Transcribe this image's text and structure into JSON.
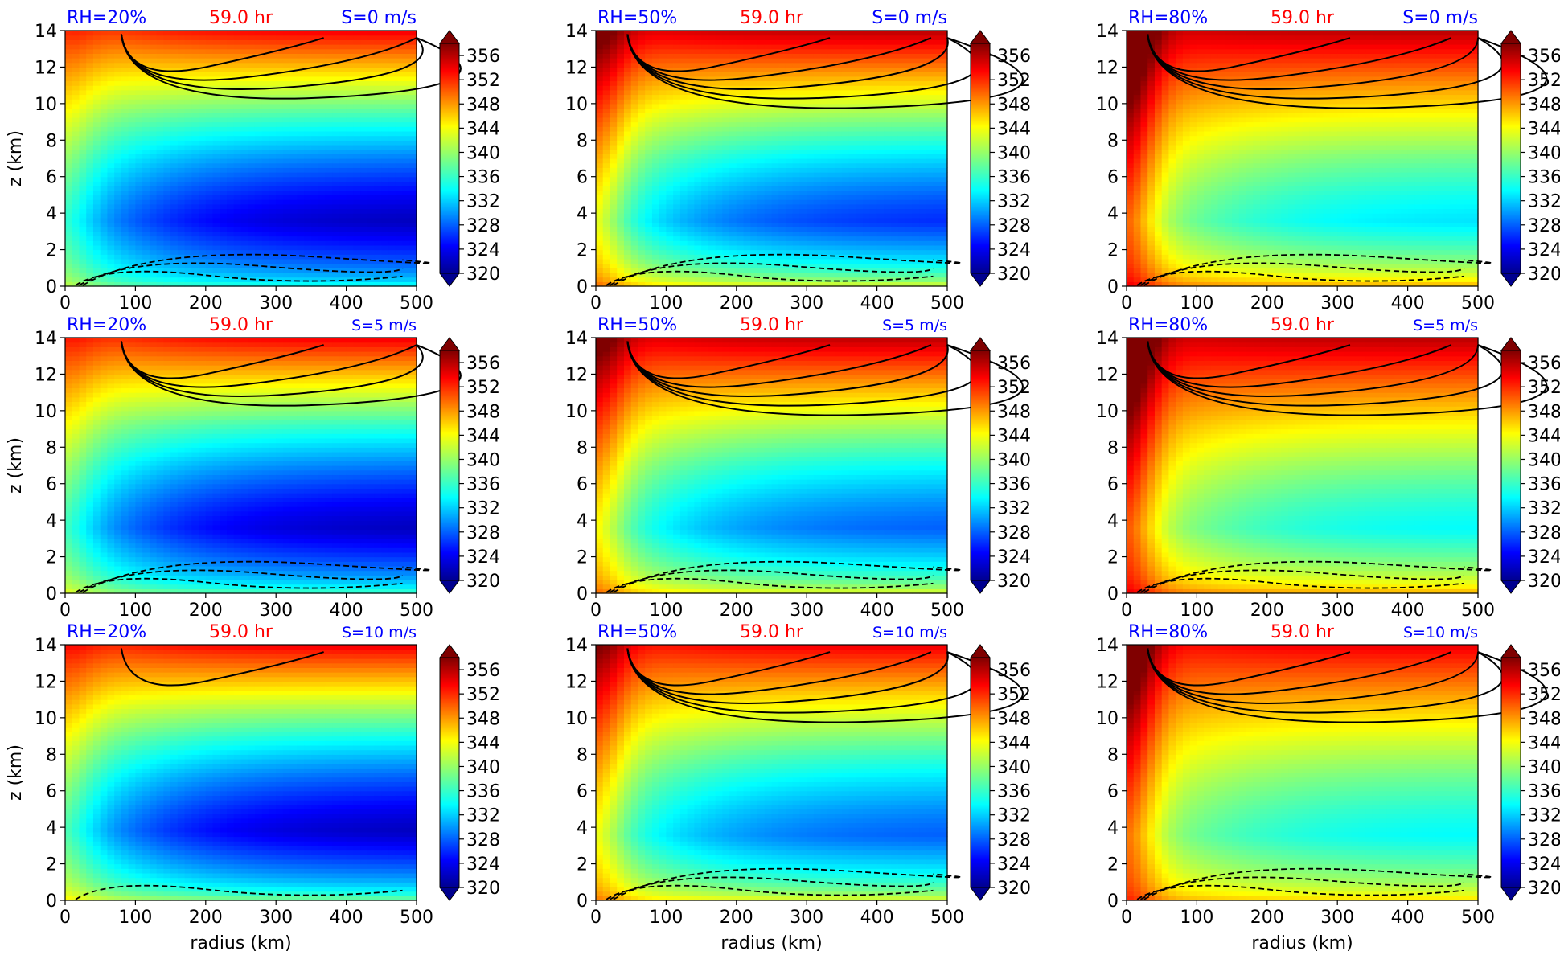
{
  "figure": {
    "panels": [
      {
        "rh": "RH=20%",
        "time": "59.0 hr",
        "shear": "S=0 m/s"
      },
      {
        "rh": "RH=50%",
        "time": "59.0 hr",
        "shear": "S=0 m/s"
      },
      {
        "rh": "RH=80%",
        "time": "59.0 hr",
        "shear": "S=0 m/s"
      },
      {
        "rh": "RH=20%",
        "time": "59.0 hr",
        "shear": "S=5 m/s"
      },
      {
        "rh": "RH=50%",
        "time": "59.0 hr",
        "shear": "S=5 m/s"
      },
      {
        "rh": "RH=80%",
        "time": "59.0 hr",
        "shear": "S=5 m/s"
      },
      {
        "rh": "RH=20%",
        "time": "59.0 hr",
        "shear": "S=10 m/s"
      },
      {
        "rh": "RH=50%",
        "time": "59.0 hr",
        "shear": "S=10 m/s"
      },
      {
        "rh": "RH=80%",
        "time": "59.0 hr",
        "shear": "S=10 m/s"
      }
    ]
  },
  "chart_data": {
    "type": "heatmap",
    "xlabel": "radius (km)",
    "ylabel": "z (km)",
    "xlim": [
      0,
      500
    ],
    "ylim": [
      0,
      14
    ],
    "xticks": [
      0,
      100,
      200,
      300,
      400,
      500
    ],
    "yticks": [
      0,
      2,
      4,
      6,
      8,
      10,
      12,
      14
    ],
    "colorbar": {
      "ticks": [
        320,
        324,
        328,
        332,
        336,
        340,
        344,
        348,
        352,
        356
      ],
      "range": [
        320,
        358
      ],
      "extend": "both",
      "colormap": "jet"
    },
    "contours": "solid black = positive, dashed black = negative",
    "panels": [
      {
        "rh": 20,
        "shear": 0,
        "low_level_min": 322,
        "surface": 336,
        "top": 354,
        "layer_min_km": [
          1.5,
          5
        ]
      },
      {
        "rh": 50,
        "shear": 0,
        "low_level_min": 326,
        "surface": 344,
        "top": 356,
        "layer_min_km": [
          1.5,
          5
        ]
      },
      {
        "rh": 80,
        "shear": 0,
        "low_level_min": 333,
        "surface": 348,
        "top": 356,
        "layer_min_km": [
          1.5,
          5
        ]
      },
      {
        "rh": 20,
        "shear": 5,
        "low_level_min": 322,
        "surface": 338,
        "top": 354,
        "layer_min_km": [
          1.5,
          5
        ]
      },
      {
        "rh": 50,
        "shear": 5,
        "low_level_min": 328,
        "surface": 344,
        "top": 356,
        "layer_min_km": [
          1.5,
          5
        ]
      },
      {
        "rh": 80,
        "shear": 5,
        "low_level_min": 334,
        "surface": 348,
        "top": 356,
        "layer_min_km": [
          1.5,
          5
        ]
      },
      {
        "rh": 20,
        "shear": 10,
        "low_level_min": 322,
        "surface": 340,
        "top": 354,
        "layer_min_km": [
          1,
          6
        ]
      },
      {
        "rh": 50,
        "shear": 10,
        "low_level_min": 328,
        "surface": 344,
        "top": 354,
        "layer_min_km": [
          1.5,
          5
        ]
      },
      {
        "rh": 80,
        "shear": 10,
        "low_level_min": 334,
        "surface": 346,
        "top": 354,
        "layer_min_km": [
          1.5,
          5
        ]
      }
    ]
  }
}
